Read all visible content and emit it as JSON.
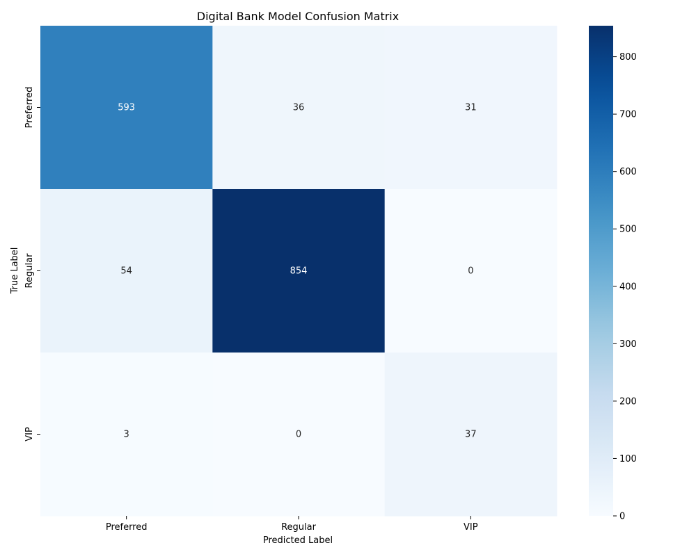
{
  "chart_data": {
    "type": "heatmap",
    "title": "Digital Bank Model Confusion Matrix",
    "xlabel": "Predicted Label",
    "ylabel": "True Label",
    "x_categories": [
      "Preferred",
      "Regular",
      "VIP"
    ],
    "y_categories": [
      "Preferred",
      "Regular",
      "VIP"
    ],
    "values": [
      [
        593,
        36,
        31
      ],
      [
        54,
        854,
        0
      ],
      [
        3,
        0,
        37
      ]
    ],
    "colorbar": {
      "colormap": "Blues",
      "range": [
        0,
        854
      ],
      "ticks": [
        0,
        100,
        200,
        300,
        400,
        500,
        600,
        700,
        800
      ]
    },
    "annotation_colors": {
      "light": "#ffffff",
      "dark": "#262626"
    }
  }
}
